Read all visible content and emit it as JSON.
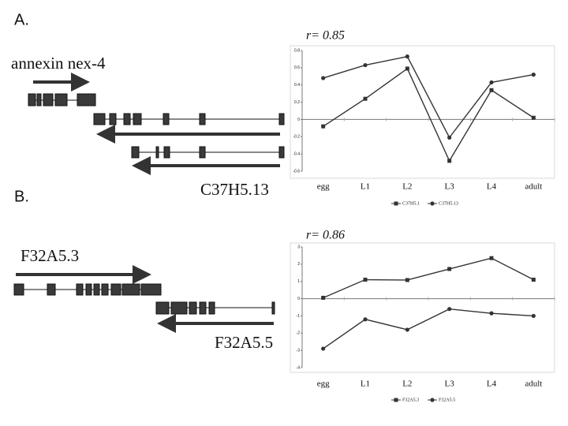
{
  "figure": {
    "panel_a": "A.",
    "panel_b": "B.",
    "gene_a1": "annexin nex-4",
    "gene_a2": "C37H5.13",
    "gene_b1": "F32A5.3",
    "gene_b2": "F32A5.5"
  },
  "chart_data": [
    {
      "type": "line",
      "annotation": "r= 0.85",
      "categories": [
        "egg",
        "L1",
        "L2",
        "L3",
        "L4",
        "adult"
      ],
      "series": [
        {
          "name": "C37H5.1",
          "color": "#333333",
          "marker": "square",
          "values": [
            -0.08,
            0.24,
            0.59,
            -0.48,
            0.34,
            0.02
          ]
        },
        {
          "name": "C37H5.13",
          "color": "#333333",
          "marker": "circle",
          "values": [
            0.48,
            0.63,
            0.73,
            -0.21,
            0.43,
            0.52
          ]
        }
      ],
      "ylim": [
        -0.6,
        0.8
      ],
      "yticks": [
        -0.6,
        -0.4,
        -0.2,
        0,
        0.2,
        0.4,
        0.6,
        0.8
      ]
    },
    {
      "type": "line",
      "annotation": "r= 0.86",
      "categories": [
        "egg",
        "L1",
        "L2",
        "L3",
        "L4",
        "adult"
      ],
      "series": [
        {
          "name": "F32A5.3",
          "color": "#333333",
          "marker": "square",
          "values": [
            0.05,
            1.1,
            1.08,
            1.72,
            2.35,
            1.1
          ]
        },
        {
          "name": "F32A5.5",
          "color": "#333333",
          "marker": "circle",
          "values": [
            -2.9,
            -1.2,
            -1.8,
            -0.6,
            -0.85,
            -1.0
          ]
        }
      ],
      "ylim": [
        -4,
        3
      ],
      "yticks": [
        -4,
        -3,
        -2,
        -1,
        0,
        1,
        2,
        3
      ]
    }
  ]
}
